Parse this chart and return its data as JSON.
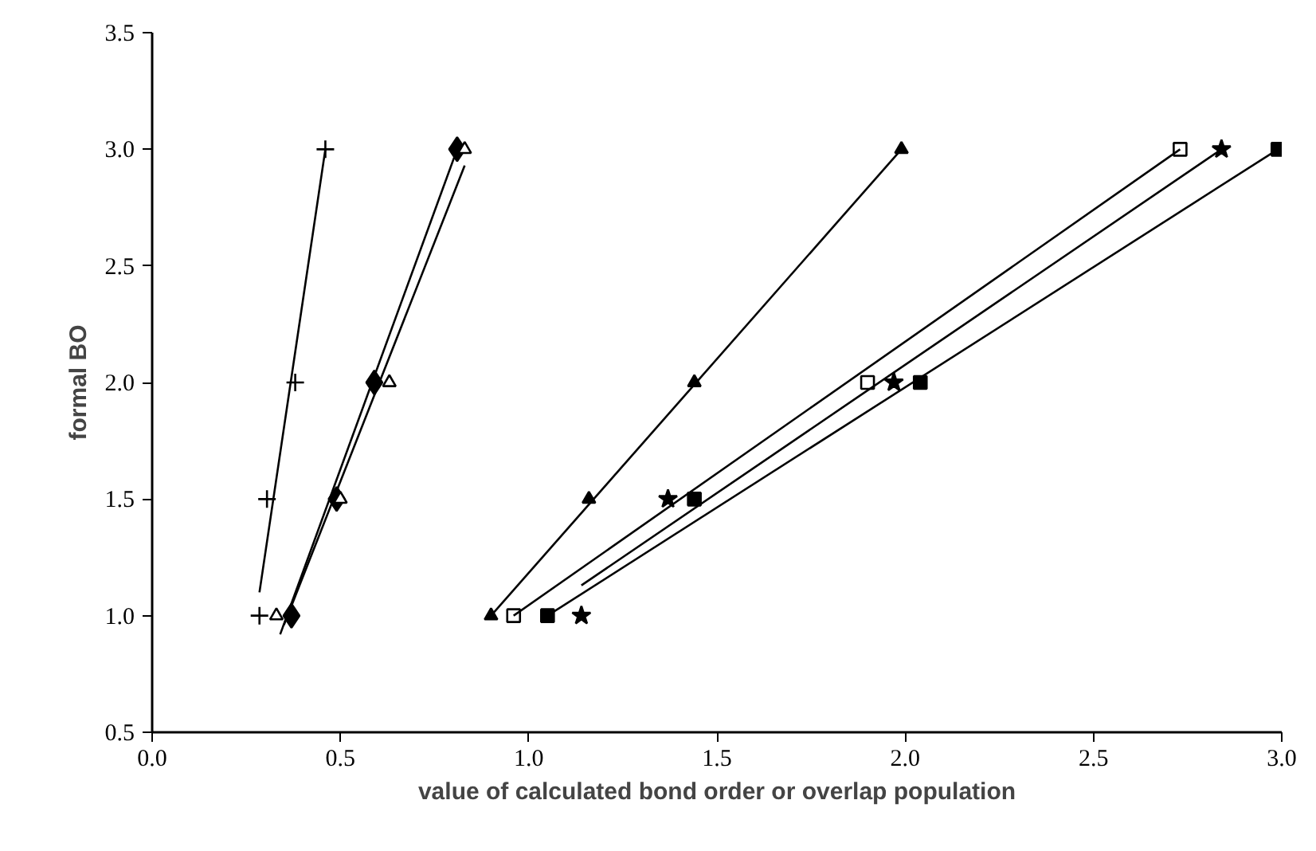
{
  "chart_data": {
    "type": "scatter",
    "xlabel": "value of calculated bond order or overlap population",
    "ylabel": "formal BO",
    "xlim": [
      0,
      3
    ],
    "ylim": [
      0.5,
      3.5
    ],
    "xticks": [
      {
        "value": 0,
        "label": "0.0"
      },
      0.5,
      {
        "value": 1,
        "label": "1.0"
      },
      1.5,
      {
        "value": 2,
        "label": "2.0"
      },
      2.5,
      {
        "value": 3,
        "label": "3.0"
      }
    ],
    "yticks": [
      0.5,
      {
        "value": 1,
        "label": "1.0"
      },
      1.5,
      {
        "value": 2,
        "label": "2.0"
      },
      2.5,
      {
        "value": 3,
        "label": "3.0"
      },
      3.5
    ],
    "grid": false,
    "series": [
      {
        "marker": "cross",
        "color": "#000000",
        "x": [
          0.285,
          0.305,
          0.38,
          0.46
        ],
        "values": [
          1.0,
          1.5,
          2.0,
          3.0
        ]
      },
      {
        "type": "line",
        "marker": "none",
        "color": "#000000",
        "x": [
          0.285,
          0.46
        ],
        "values": [
          1.1,
          3.0
        ]
      },
      {
        "marker": "diamond",
        "color": "#000000",
        "x": [
          0.37,
          0.49,
          0.59,
          0.81
        ],
        "values": [
          1.0,
          1.5,
          2.0,
          3.0
        ]
      },
      {
        "type": "line",
        "marker": "none",
        "color": "#000000",
        "x": [
          0.34,
          0.81
        ],
        "values": [
          0.92,
          3.0
        ]
      },
      {
        "marker": "triangle-open",
        "color": "#000000",
        "x": [
          0.33,
          0.5,
          0.63,
          0.83
        ],
        "values": [
          1.0,
          1.5,
          2.0,
          3.0
        ]
      },
      {
        "type": "line",
        "marker": "none",
        "color": "#000000",
        "x": [
          0.35,
          0.83
        ],
        "values": [
          0.96,
          2.93
        ]
      },
      {
        "marker": "triangle",
        "color": "#000000",
        "x": [
          0.9,
          1.16,
          1.44,
          1.99
        ],
        "values": [
          1.0,
          1.5,
          2.0,
          3.0
        ]
      },
      {
        "type": "line",
        "marker": "none",
        "color": "#000000",
        "x": [
          0.9,
          1.99
        ],
        "values": [
          1.0,
          3.0
        ]
      },
      {
        "marker": "square-open",
        "color": "#000000",
        "x": [
          0.96,
          1.9,
          2.73
        ],
        "values": [
          1.0,
          2.0,
          3.0
        ]
      },
      {
        "type": "line",
        "marker": "none",
        "color": "#000000",
        "x": [
          0.96,
          2.73
        ],
        "values": [
          1.0,
          3.0
        ]
      },
      {
        "marker": "star",
        "color": "#000000",
        "x": [
          1.14,
          1.37,
          1.97,
          2.84
        ],
        "values": [
          1.0,
          1.5,
          2.0,
          3.0
        ]
      },
      {
        "type": "line",
        "marker": "none",
        "color": "#000000",
        "x": [
          1.14,
          2.84
        ],
        "values": [
          1.13,
          3.0
        ]
      },
      {
        "marker": "square",
        "color": "#000000",
        "x": [
          1.05,
          1.44,
          2.04,
          2.99
        ],
        "values": [
          1.0,
          1.5,
          2.0,
          3.0
        ]
      },
      {
        "type": "line",
        "marker": "none",
        "color": "#000000",
        "x": [
          1.05,
          2.99
        ],
        "values": [
          1.0,
          3.0
        ]
      }
    ]
  }
}
